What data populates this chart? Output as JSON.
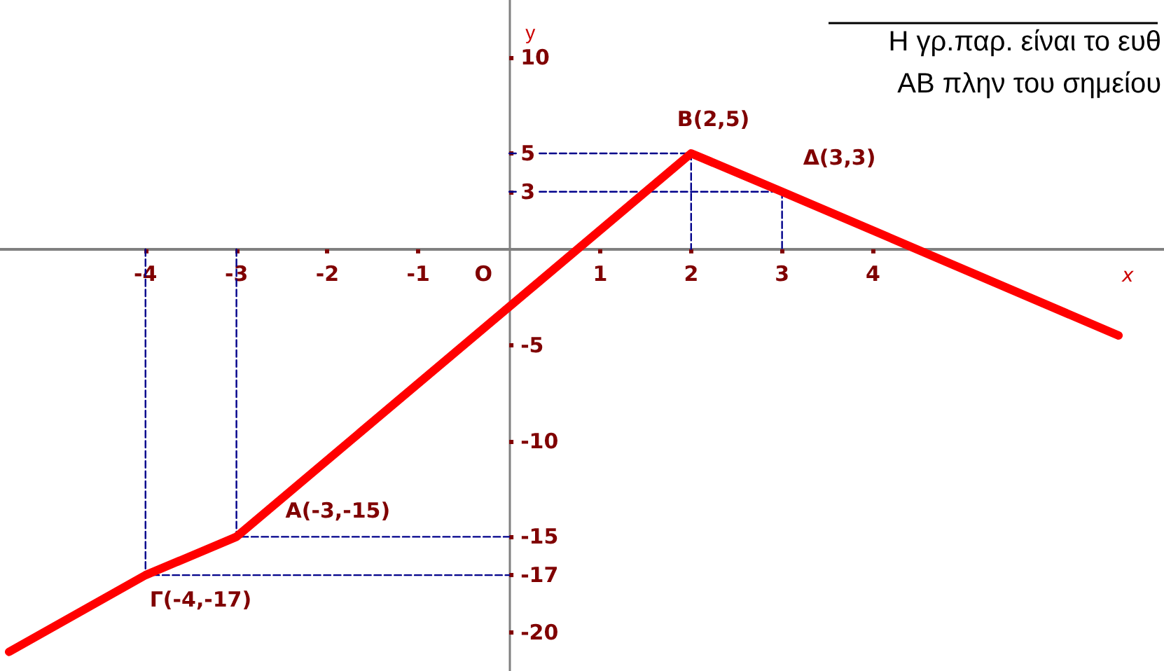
{
  "chart_data": {
    "type": "line",
    "xlabel": "x",
    "ylabel": "y",
    "annotations": [
      "Η γρ.παρ. είναι το ευθ",
      "ΑΒ πλην του σημείου",
      "O",
      {
        "text": "A(-3,-15)",
        "x": -3,
        "y": -15
      },
      {
        "text": "B(2,5)",
        "x": 2,
        "y": 5
      },
      {
        "text": "Γ(-4,-17)",
        "x": -4,
        "y": -17
      },
      {
        "text": "Δ(3,3)",
        "x": 3,
        "y": 3
      }
    ],
    "series": [
      {
        "color": "#ff0000",
        "x": [
          -5.5,
          -4,
          -3,
          2,
          3,
          6.7
        ],
        "values": [
          -21,
          -17,
          -15,
          5,
          3,
          -4.5
        ],
        "marker": "none",
        "line_style": "solid"
      },
      {
        "color": "#00008b",
        "x": [
          0,
          2,
          2
        ],
        "values": [
          5,
          5,
          0
        ],
        "marker": "none",
        "line_style": "dashed"
      },
      {
        "color": "#00008b",
        "x": [
          0,
          3,
          3
        ],
        "values": [
          3,
          3,
          0
        ],
        "marker": "none",
        "line_style": "dashed"
      },
      {
        "color": "#00008b",
        "x": [
          -3,
          -3,
          0
        ],
        "values": [
          0,
          -15,
          -15
        ],
        "marker": "none",
        "line_style": "dashed"
      },
      {
        "color": "#00008b",
        "x": [
          -4,
          -4,
          0
        ],
        "values": [
          0,
          -17,
          -17
        ],
        "marker": "none",
        "line_style": "dashed"
      }
    ],
    "xlim": [
      -5.6,
      7.2
    ],
    "ylim": [
      -22,
      13
    ],
    "xticks": [
      -4,
      -3,
      -2,
      -1,
      1,
      2,
      3,
      4
    ],
    "yticks": [
      -20,
      -17,
      -15,
      -10,
      -5,
      3,
      5,
      10
    ]
  }
}
